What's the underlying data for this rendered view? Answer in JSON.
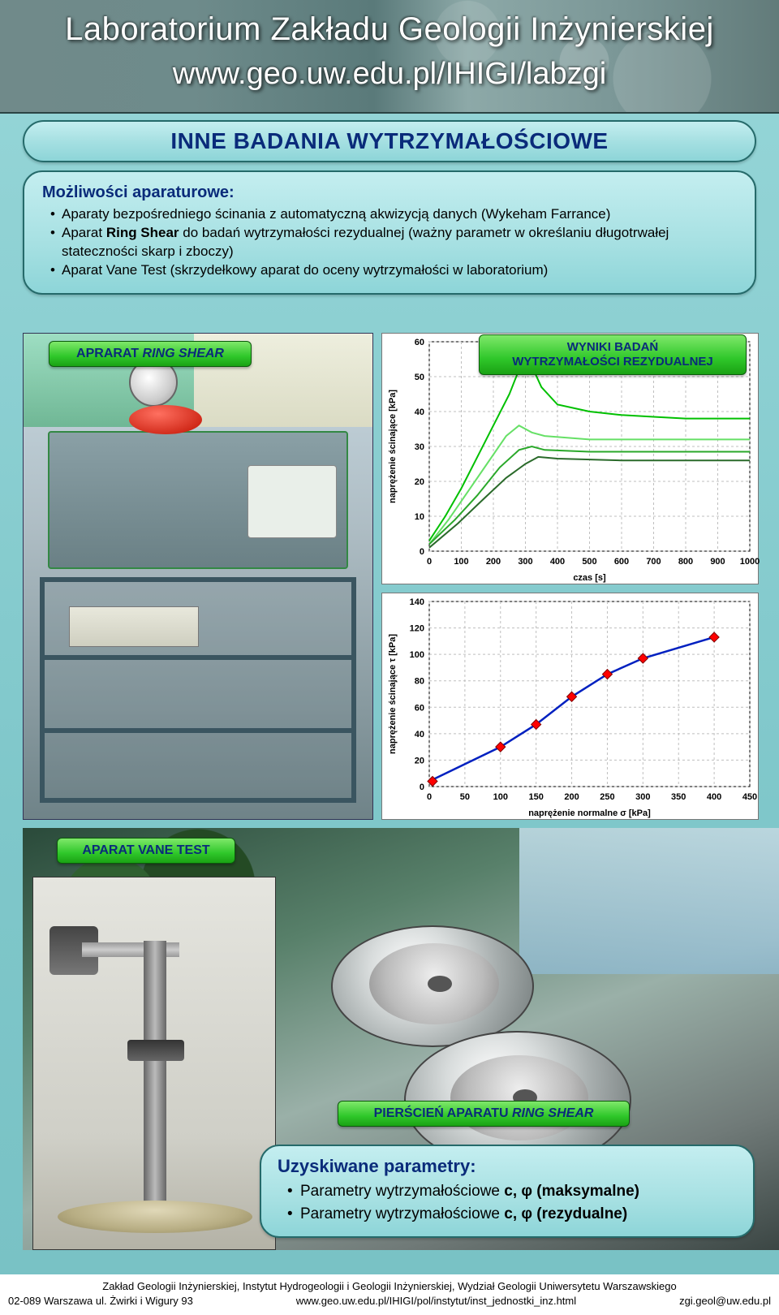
{
  "header": {
    "title": "Laboratorium Zakładu Geologii Inżynierskiej",
    "subtitle": "www.geo.uw.edu.pl/IHIGI/labzgi"
  },
  "main_title": "INNE BADANIA WYTRZYMAŁOŚCIOWE",
  "capabilities": {
    "title": "Możliwości aparaturowe:",
    "items": [
      "Aparaty bezpośredniego ścinania z automatyczną akwizycją danych (Wykeham Farrance)",
      "Aparat <b>Ring Shear</b> do badań wytrzymałości rezydualnej (ważny parametr w określaniu długotrwałej stateczności skarp i zboczy)",
      "Aparat Vane Test (skrzydełkowy aparat do oceny wytrzymałości w laboratorium)"
    ]
  },
  "labels": {
    "ring": "APRARAT <i>RING SHEAR</i>",
    "wyniki": "WYNIKI BADAŃ<br>WYTRZYMAŁOŚCI REZYDUALNEJ",
    "vane": "APARAT VANE TEST",
    "piers": "PIERŚCIEŃ APARATU  <i>RING SHEAR</i>"
  },
  "chart1": {
    "type": "line",
    "xlabel": "czas [s]",
    "ylabel": "naprężenie ścinające [kPa]",
    "xlim": [
      0,
      1000
    ],
    "xtick_step": 100,
    "ylim": [
      0,
      60
    ],
    "ytick_step": 10,
    "grid_color": "#bfbfbf",
    "background": "#ffffff",
    "series": [
      {
        "color": "#00c000",
        "width": 2,
        "points": [
          [
            0,
            3
          ],
          [
            50,
            10
          ],
          [
            100,
            18
          ],
          [
            150,
            27
          ],
          [
            200,
            36
          ],
          [
            250,
            45
          ],
          [
            280,
            52
          ],
          [
            300,
            54
          ],
          [
            320,
            53
          ],
          [
            350,
            47
          ],
          [
            400,
            42
          ],
          [
            500,
            40
          ],
          [
            600,
            39
          ],
          [
            700,
            38.5
          ],
          [
            800,
            38
          ],
          [
            900,
            38
          ],
          [
            1000,
            38
          ]
        ]
      },
      {
        "color": "#66e066",
        "width": 2,
        "points": [
          [
            0,
            2
          ],
          [
            60,
            9
          ],
          [
            120,
            17
          ],
          [
            180,
            25
          ],
          [
            240,
            33
          ],
          [
            280,
            36
          ],
          [
            320,
            34
          ],
          [
            360,
            33
          ],
          [
            500,
            32
          ],
          [
            700,
            32
          ],
          [
            900,
            32
          ],
          [
            1000,
            32
          ]
        ]
      },
      {
        "color": "#2aa82a",
        "width": 2,
        "points": [
          [
            0,
            2
          ],
          [
            80,
            9
          ],
          [
            150,
            16
          ],
          [
            220,
            24
          ],
          [
            280,
            29
          ],
          [
            320,
            30
          ],
          [
            360,
            29
          ],
          [
            500,
            28.5
          ],
          [
            700,
            28.5
          ],
          [
            900,
            28.5
          ],
          [
            1000,
            28.5
          ]
        ]
      },
      {
        "color": "#2a6a2a",
        "width": 2,
        "points": [
          [
            0,
            1
          ],
          [
            90,
            8
          ],
          [
            170,
            15
          ],
          [
            240,
            21
          ],
          [
            300,
            25
          ],
          [
            340,
            27
          ],
          [
            400,
            26.5
          ],
          [
            600,
            26
          ],
          [
            800,
            26
          ],
          [
            1000,
            26
          ]
        ]
      }
    ]
  },
  "chart2": {
    "type": "scatter-line",
    "xlabel": "naprężenie normalne σ [kPa]",
    "ylabel": "naprężenie ścinające τ [kPa]",
    "xlim": [
      0,
      450
    ],
    "xtick_step": 50,
    "ylim": [
      0,
      140
    ],
    "ytick_step": 20,
    "grid_color": "#bfbfbf",
    "line_color": "#0020c0",
    "line_width": 2.5,
    "marker_color": "#ff0000",
    "marker_edge": "#800000",
    "marker_size": 6,
    "points": [
      [
        0,
        4
      ],
      [
        100,
        30
      ],
      [
        150,
        47
      ],
      [
        200,
        68
      ],
      [
        250,
        85
      ],
      [
        300,
        97
      ],
      [
        400,
        113
      ]
    ]
  },
  "results": {
    "title": "Uzyskiwane parametry:",
    "items": [
      "Parametry wytrzymałościowe <b>c, φ (maksymalne)</b>",
      "Parametry wytrzymałościowe <b>c, φ (rezydualne)</b>"
    ]
  },
  "footer": {
    "line1": "Zakład Geologii Inżynierskiej, Instytut Hydrogeologii i Geologii Inżynierskiej, Wydział Geologii Uniwersytetu Warszawskiego",
    "left": "02-089 Warszawa ul. Żwirki i Wigury 93",
    "center": "www.geo.uw.edu.pl/IHIGI/pol/instytut/inst_jednostki_inz.html",
    "right": "zgi.geol@uw.edu.pl"
  }
}
